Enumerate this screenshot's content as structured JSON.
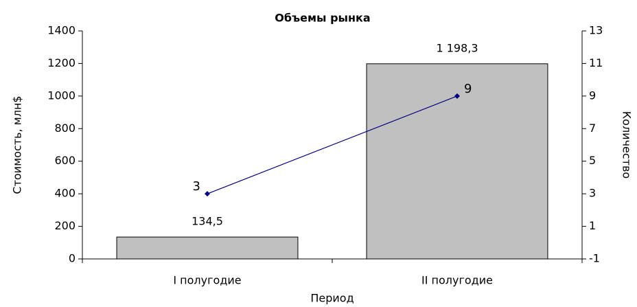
{
  "chart_data": {
    "type": "bar",
    "title": "Объемы рынка",
    "xlabel": "Период",
    "ylabel": "Стоимость, млн$",
    "y2label": "Количество",
    "categories": [
      "I полугодие",
      "II полугодие"
    ],
    "series": [
      {
        "type": "bar",
        "color": "#c0c0c0",
        "values": [
          134.5,
          1198.3
        ],
        "value_labels": [
          "134,5",
          "1 198,3"
        ]
      },
      {
        "type": "line",
        "axis": "y2",
        "color": "#000080",
        "values": [
          3,
          9
        ]
      }
    ],
    "ylim": [
      0,
      1400
    ],
    "yticks": [
      0,
      200,
      400,
      600,
      800,
      1000,
      1200,
      1400
    ],
    "y2lim": [
      -1,
      13
    ],
    "y2ticks": [
      -1,
      1,
      3,
      5,
      7,
      9,
      11,
      13
    ]
  }
}
